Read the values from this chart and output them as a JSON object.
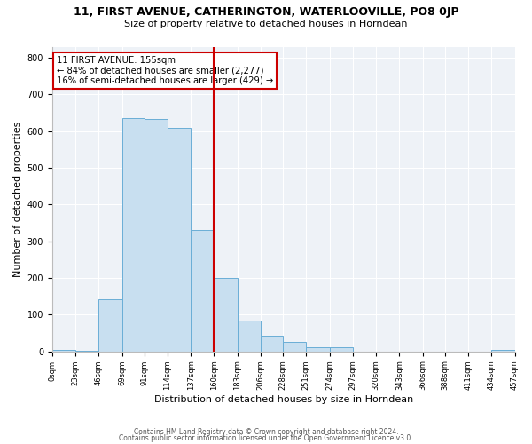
{
  "title1": "11, FIRST AVENUE, CATHERINGTON, WATERLOOVILLE, PO8 0JP",
  "title2": "Size of property relative to detached houses in Horndean",
  "xlabel": "Distribution of detached houses by size in Horndean",
  "ylabel": "Number of detached properties",
  "footer1": "Contains HM Land Registry data © Crown copyright and database right 2024.",
  "footer2": "Contains public sector information licensed under the Open Government Licence v3.0.",
  "bin_edges": [
    0,
    23,
    46,
    69,
    91,
    114,
    137,
    160,
    183,
    206,
    228,
    251,
    274,
    297,
    320,
    343,
    366,
    388,
    411,
    434,
    457
  ],
  "bin_labels": [
    "0sqm",
    "23sqm",
    "46sqm",
    "69sqm",
    "91sqm",
    "114sqm",
    "137sqm",
    "160sqm",
    "183sqm",
    "206sqm",
    "228sqm",
    "251sqm",
    "274sqm",
    "297sqm",
    "320sqm",
    "343sqm",
    "366sqm",
    "388sqm",
    "411sqm",
    "434sqm",
    "457sqm"
  ],
  "counts": [
    3,
    2,
    143,
    636,
    633,
    608,
    331,
    201,
    84,
    43,
    27,
    12,
    12,
    0,
    0,
    0,
    0,
    0,
    0,
    3
  ],
  "bar_color": "#c8dff0",
  "bar_edge_color": "#6aaed6",
  "vline_x": 160,
  "vline_color": "#cc0000",
  "annotation_text": "11 FIRST AVENUE: 155sqm\n← 84% of detached houses are smaller (2,277)\n16% of semi-detached houses are larger (429) →",
  "annotation_box_color": "#ffffff",
  "annotation_box_edge": "#cc0000",
  "ylim": [
    0,
    830
  ],
  "yticks": [
    0,
    100,
    200,
    300,
    400,
    500,
    600,
    700,
    800
  ],
  "background_color": "#eef2f7"
}
